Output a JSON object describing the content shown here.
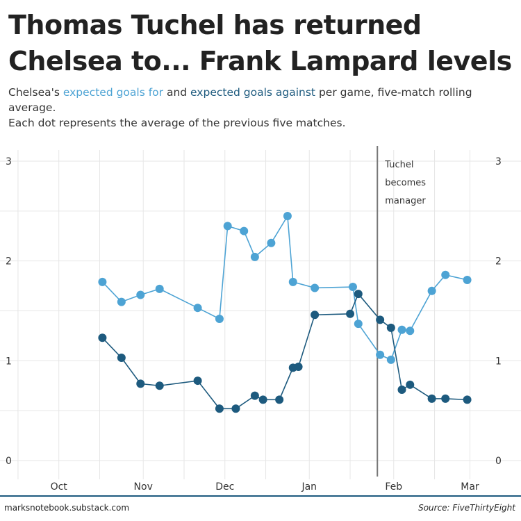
{
  "header": {
    "title": "Thomas Tuchel has returned Chelsea to... Frank Lampard levels",
    "subtitle_pre": "Chelsea's ",
    "subtitle_for": "expected goals for",
    "subtitle_mid": " and ",
    "subtitle_against": "expected goals against",
    "subtitle_post": " per game, five-match rolling average.",
    "subtitle_line2": "Each dot represents the average of the previous five matches."
  },
  "footer": {
    "left": "marksnotebook.substack.com",
    "right": "Source: FiveThirtyEight"
  },
  "colors": {
    "xg_for": "#4da3d4",
    "xg_against": "#1d5a7e",
    "grid": "#e6e6e6",
    "annotation_line": "#777777"
  },
  "chart_data": {
    "type": "line",
    "title": "Thomas Tuchel has returned Chelsea to... Frank Lampard levels",
    "xlabel": "",
    "ylabel": "",
    "ylim": [
      0,
      3
    ],
    "yticks": [
      "0",
      "1",
      "2",
      "3"
    ],
    "xticks": [
      "Oct",
      "Nov",
      "Dec",
      "Jan",
      "Feb",
      "Mar"
    ],
    "xlim": [
      "2020-09-15",
      "2021-03-07"
    ],
    "grid": true,
    "annotation": {
      "date": "2021-01-26",
      "lines": [
        "Tuchel",
        "becomes",
        "manager"
      ]
    },
    "series": [
      {
        "name": "expected goals for",
        "color": "#4da3d4",
        "points": [
          [
            "2020-10-17",
            1.79
          ],
          [
            "2020-10-24",
            1.59
          ],
          [
            "2020-10-31",
            1.66
          ],
          [
            "2020-11-07",
            1.72
          ],
          [
            "2020-11-21",
            1.53
          ],
          [
            "2020-11-29",
            1.42
          ],
          [
            "2020-12-02",
            2.35
          ],
          [
            "2020-12-08",
            2.3
          ],
          [
            "2020-12-12",
            2.04
          ],
          [
            "2020-12-18",
            2.18
          ],
          [
            "2020-12-24",
            2.45
          ],
          [
            "2020-12-26",
            1.79
          ],
          [
            "2021-01-03",
            1.73
          ],
          [
            "2021-01-17",
            1.74
          ],
          [
            "2021-01-19",
            1.37
          ],
          [
            "2021-01-27",
            1.06
          ],
          [
            "2021-01-31",
            1.01
          ],
          [
            "2021-02-04",
            1.31
          ],
          [
            "2021-02-07",
            1.3
          ],
          [
            "2021-02-15",
            1.7
          ],
          [
            "2021-02-20",
            1.86
          ],
          [
            "2021-02-28",
            1.81
          ]
        ]
      },
      {
        "name": "expected goals against",
        "color": "#1d5a7e",
        "points": [
          [
            "2020-10-17",
            1.23
          ],
          [
            "2020-10-24",
            1.03
          ],
          [
            "2020-10-31",
            0.77
          ],
          [
            "2020-11-07",
            0.75
          ],
          [
            "2020-11-21",
            0.8
          ],
          [
            "2020-11-29",
            0.52
          ],
          [
            "2020-12-05",
            0.52
          ],
          [
            "2020-12-12",
            0.65
          ],
          [
            "2020-12-15",
            0.61
          ],
          [
            "2020-12-21",
            0.61
          ],
          [
            "2020-12-26",
            0.93
          ],
          [
            "2020-12-28",
            0.94
          ],
          [
            "2021-01-03",
            1.46
          ],
          [
            "2021-01-16",
            1.47
          ],
          [
            "2021-01-19",
            1.67
          ],
          [
            "2021-01-27",
            1.41
          ],
          [
            "2021-01-31",
            1.33
          ],
          [
            "2021-02-04",
            0.71
          ],
          [
            "2021-02-07",
            0.76
          ],
          [
            "2021-02-15",
            0.62
          ],
          [
            "2021-02-20",
            0.62
          ],
          [
            "2021-02-28",
            0.61
          ]
        ]
      }
    ]
  }
}
